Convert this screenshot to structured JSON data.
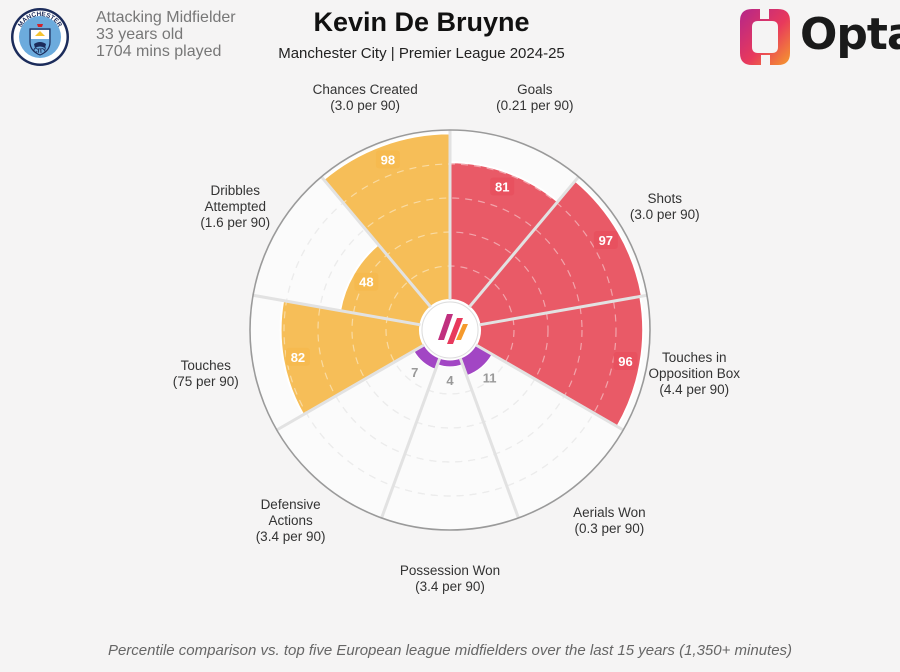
{
  "header": {
    "player_name": "Kevin De Bruyne",
    "team_competition": "Manchester City | Premier League 2024-25",
    "position": "Attacking Midfielder",
    "age": "33 years old",
    "minutes": "1704 mins played",
    "badge_top_text": "MANCHESTER",
    "badge_bottom_text": "CITY",
    "brand": "Opta"
  },
  "footnote": "Percentile comparison vs. top five European league midfielders over the last 15 years (1,350+ minutes)",
  "colors": {
    "possession": "#f6ba4f",
    "attacking": "#e8515f",
    "defending": "#a246c4",
    "background": "#f5f4f4"
  },
  "chart_data": {
    "type": "radar-bar",
    "value_scale": "percentile",
    "rmax": 100,
    "categories": [
      {
        "name": "Goals",
        "line1": "Goals",
        "line2": "",
        "rate": "(0.21 per 90)",
        "value": 81,
        "group": "attacking"
      },
      {
        "name": "Shots",
        "line1": "Shots",
        "line2": "",
        "rate": "(3.0 per 90)",
        "value": 97,
        "group": "attacking"
      },
      {
        "name": "Touches in Opposition Box",
        "line1": "Touches in",
        "line2": "Opposition Box",
        "rate": "(4.4 per 90)",
        "value": 96,
        "group": "attacking"
      },
      {
        "name": "Aerials Won",
        "line1": "Aerials Won",
        "line2": "",
        "rate": "(0.3 per 90)",
        "value": 11,
        "group": "defending"
      },
      {
        "name": "Possession Won",
        "line1": "Possession Won",
        "line2": "",
        "rate": "(3.4 per 90)",
        "value": 4,
        "group": "defending"
      },
      {
        "name": "Defensive Actions",
        "line1": "Defensive",
        "line2": "Actions",
        "rate": "(3.4 per 90)",
        "value": 7,
        "group": "defending"
      },
      {
        "name": "Touches",
        "line1": "Touches",
        "line2": "",
        "rate": "(75 per 90)",
        "value": 82,
        "group": "possession"
      },
      {
        "name": "Dribbles Attempted",
        "line1": "Dribbles",
        "line2": "Attempted",
        "rate": "(1.6 per 90)",
        "value": 48,
        "group": "possession"
      },
      {
        "name": "Chances Created",
        "line1": "Chances Created",
        "line2": "",
        "rate": "(3.0 per 90)",
        "value": 98,
        "group": "possession"
      }
    ]
  }
}
